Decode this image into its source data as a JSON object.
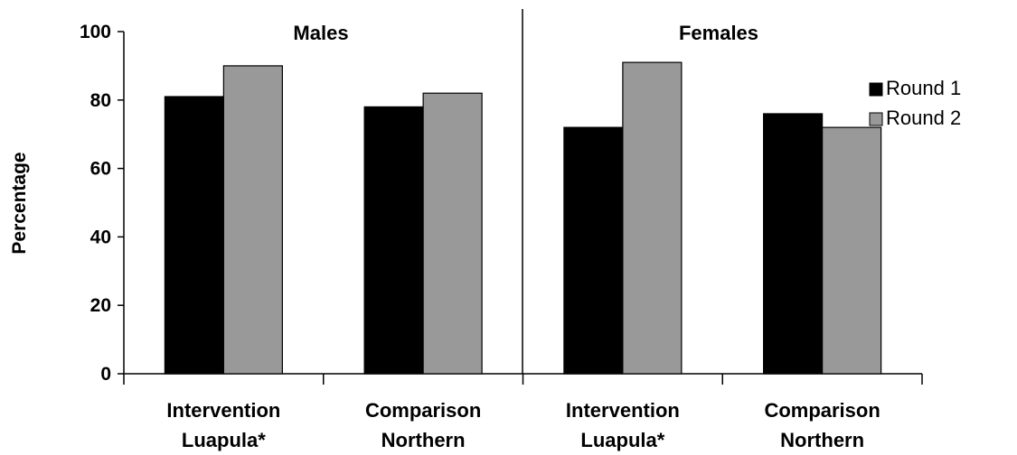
{
  "chart_data": {
    "type": "bar",
    "title": "",
    "ylabel": "Percentage",
    "xlabel": "",
    "ylim": [
      0,
      100
    ],
    "yticks": [
      0,
      20,
      40,
      60,
      80,
      100
    ],
    "grid": false,
    "legend_position": "top-right",
    "panels": [
      {
        "title": "Males",
        "categories": [
          {
            "line1": "Intervention",
            "line2": "Luapula*"
          },
          {
            "line1": "Comparison",
            "line2": "Northern"
          }
        ]
      },
      {
        "title": "Females",
        "categories": [
          {
            "line1": "Intervention",
            "line2": "Luapula*"
          },
          {
            "line1": "Comparison",
            "line2": "Northern"
          }
        ]
      }
    ],
    "series": [
      {
        "name": "Round 1",
        "color": "#000000",
        "values": [
          81,
          78,
          72,
          76
        ]
      },
      {
        "name": "Round 2",
        "color": "#999999",
        "values": [
          90,
          82,
          91,
          72
        ]
      }
    ]
  }
}
